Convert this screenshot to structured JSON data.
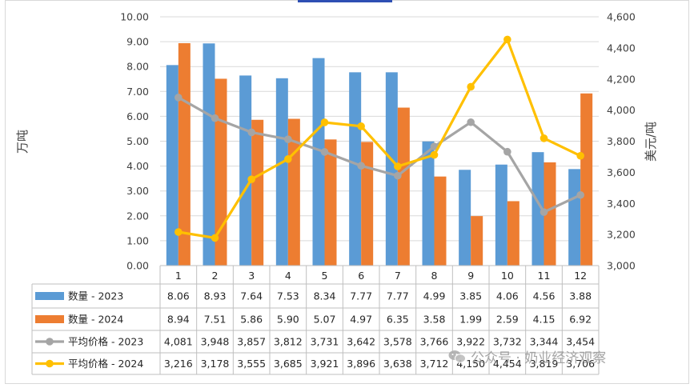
{
  "colors": {
    "bar2023": "#5b9bd5",
    "bar2024": "#ed7d31",
    "price2023": "#a5a5a5",
    "price2024": "#ffc000",
    "grid": "#d9d9d9",
    "text": "#404040",
    "accent_topbar": "#2e4fb3"
  },
  "watermark": "公众号 · 奶业经济观察",
  "chart_data": {
    "type": "bar",
    "combo": "bar + line (secondary axis) with data table",
    "categories": [
      "1",
      "2",
      "3",
      "4",
      "5",
      "6",
      "7",
      "8",
      "9",
      "10",
      "11",
      "12"
    ],
    "ylabel": "万吨",
    "y2label": "美元/吨",
    "ylim": [
      0,
      10
    ],
    "y_ticks": [
      "0.00",
      "1.00",
      "2.00",
      "3.00",
      "4.00",
      "5.00",
      "6.00",
      "7.00",
      "8.00",
      "9.00",
      "10.00"
    ],
    "y2lim": [
      3000,
      4600
    ],
    "y2_ticks": [
      "3,000",
      "3,200",
      "3,400",
      "3,600",
      "3,800",
      "4,000",
      "4,200",
      "4,400",
      "4,600"
    ],
    "grid": true,
    "legend": "data-table",
    "series": [
      {
        "name": "数量 - 2023",
        "type": "bar",
        "axis": "left",
        "values": [
          8.06,
          8.93,
          7.64,
          7.53,
          8.34,
          7.77,
          7.77,
          4.99,
          3.85,
          4.06,
          4.56,
          3.88
        ],
        "labels": [
          "8.06",
          "8.93",
          "7.64",
          "7.53",
          "8.34",
          "7.77",
          "7.77",
          "4.99",
          "3.85",
          "4.06",
          "4.56",
          "3.88"
        ]
      },
      {
        "name": "数量 - 2024",
        "type": "bar",
        "axis": "left",
        "values": [
          8.94,
          7.51,
          5.86,
          5.9,
          5.07,
          4.97,
          6.35,
          3.58,
          1.99,
          2.59,
          4.15,
          6.92
        ],
        "labels": [
          "8.94",
          "7.51",
          "5.86",
          "5.90",
          "5.07",
          "4.97",
          "6.35",
          "3.58",
          "1.99",
          "2.59",
          "4.15",
          "6.92"
        ]
      },
      {
        "name": "平均价格 - 2023",
        "type": "line",
        "axis": "right",
        "values": [
          4081,
          3948,
          3857,
          3812,
          3731,
          3642,
          3578,
          3766,
          3922,
          3732,
          3344,
          3454
        ],
        "labels": [
          "4,081",
          "3,948",
          "3,857",
          "3,812",
          "3,731",
          "3,642",
          "3,578",
          "3,766",
          "3,922",
          "3,732",
          "3,344",
          "3,454"
        ]
      },
      {
        "name": "平均价格 - 2024",
        "type": "line",
        "axis": "right",
        "values": [
          3216,
          3178,
          3555,
          3685,
          3921,
          3896,
          3638,
          3712,
          4150,
          4454,
          3819,
          3706
        ],
        "labels": [
          "3,216",
          "3,178",
          "3,555",
          "3,685",
          "3,921",
          "3,896",
          "3,638",
          "3,712",
          "4,150",
          "4,454",
          "3,819",
          "3,706"
        ]
      }
    ]
  }
}
